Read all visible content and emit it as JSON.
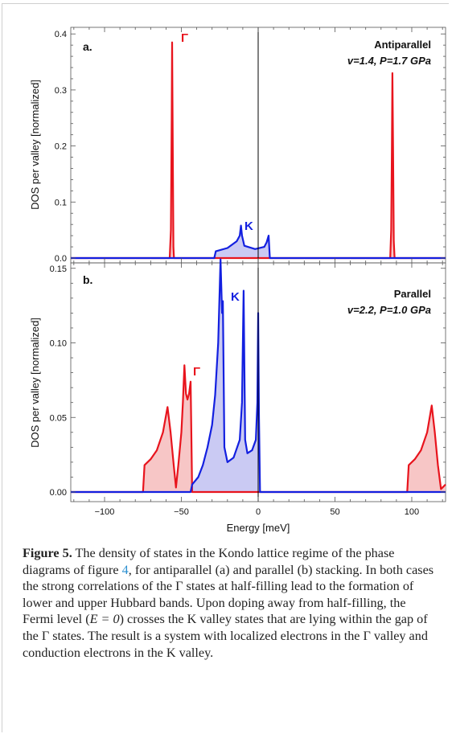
{
  "figure": {
    "xlabel": "Energy [meV]",
    "x_ticklabels": [
      "−100",
      "−50",
      "0",
      "50",
      "100"
    ]
  },
  "caption": {
    "label": "Figure 5.",
    "text_1": " The density of states in the Kondo lattice regime of the phase diagrams of figure ",
    "ref": "4",
    "text_2": ", for antiparallel (a) and parallel (b) stacking. In both cases the strong correlations of the Γ states at half-filling lead to the formation of lower and upper Hubbard bands. Upon doping away from half-filling, the Fermi level (",
    "math": "E = 0",
    "text_3": ") crosses the K valley states that are lying within the gap of the Γ states. The result is a system with localized electrons in the Γ valley and conduction electrons in the K valley."
  },
  "chart_data": [
    {
      "type": "area",
      "panel_label": "a.",
      "title": "Antiparallel",
      "subtitle": "v=1.4, P=1.7 GPa",
      "ylabel": "DOS per valley [normalized]",
      "xlabel": "",
      "xlim": [
        -122,
        122
      ],
      "ylim": [
        0,
        0.41
      ],
      "y_ticklabels": [
        "0.0",
        "0.1",
        "0.2",
        "0.3",
        "0.4"
      ],
      "annotations": [
        "Γ",
        "K"
      ],
      "series": [
        {
          "name": "Γ",
          "color": "#e8141d",
          "fill": "#f7c6c6",
          "points": [
            [
              -122,
              0
            ],
            [
              -57.6,
              0
            ],
            [
              -56.8,
              0.05
            ],
            [
              -56.3,
              0.25
            ],
            [
              -56.0,
              0.385
            ],
            [
              -55.6,
              0.2
            ],
            [
              -55.2,
              0.02
            ],
            [
              -54.8,
              0
            ],
            [
              86.0,
              0
            ],
            [
              86.6,
              0.05
            ],
            [
              87.1,
              0.2
            ],
            [
              87.4,
              0.33
            ],
            [
              87.8,
              0.2
            ],
            [
              88.3,
              0.03
            ],
            [
              88.8,
              0
            ],
            [
              122,
              0
            ]
          ]
        },
        {
          "name": "K",
          "color": "#1320e0",
          "fill": "#cacaf3",
          "points": [
            [
              -122,
              0
            ],
            [
              -28.6,
              0
            ],
            [
              -27.6,
              0.012
            ],
            [
              -20,
              0.018
            ],
            [
              -14,
              0.03
            ],
            [
              -12,
              0.04
            ],
            [
              -11.2,
              0.058
            ],
            [
              -10.5,
              0.04
            ],
            [
              -9,
              0.022
            ],
            [
              -2,
              0.016
            ],
            [
              4,
              0.02
            ],
            [
              5.5,
              0.028
            ],
            [
              6.8,
              0.04
            ],
            [
              7.6,
              0
            ],
            [
              122,
              0
            ]
          ]
        }
      ]
    },
    {
      "type": "area",
      "panel_label": "b.",
      "title": "Parallel",
      "subtitle": "v=2.2, P=1.0 GPa",
      "ylabel": "DOS per valley [normalized]",
      "xlabel": "Energy [meV]",
      "xlim": [
        -122,
        122
      ],
      "ylim": [
        0,
        0.158
      ],
      "x_ticks": [
        -100,
        -50,
        0,
        50,
        100
      ],
      "y_ticklabels": [
        "0.00",
        "0.05",
        "0.10",
        "0.15"
      ],
      "annotations": [
        "Γ",
        "K"
      ],
      "series": [
        {
          "name": "Γ",
          "color": "#e8141d",
          "fill": "#f7c6c6",
          "points": [
            [
              -122,
              0
            ],
            [
              -75,
              0
            ],
            [
              -74,
              0.018
            ],
            [
              -70,
              0.022
            ],
            [
              -66,
              0.028
            ],
            [
              -62,
              0.04
            ],
            [
              -59,
              0.057
            ],
            [
              -57,
              0.04
            ],
            [
              -55,
              0.018
            ],
            [
              -53.5,
              0.003
            ],
            [
              -52,
              0.018
            ],
            [
              -50,
              0.04
            ],
            [
              -49,
              0.06
            ],
            [
              -48,
              0.085
            ],
            [
              -47,
              0.066
            ],
            [
              -46,
              0.062
            ],
            [
              -45,
              0.066
            ],
            [
              -44,
              0.074
            ],
            [
              -43.5,
              0.04
            ],
            [
              -43,
              0
            ],
            [
              97,
              0
            ],
            [
              98,
              0.018
            ],
            [
              102,
              0.022
            ],
            [
              106,
              0.028
            ],
            [
              110,
              0.04
            ],
            [
              113,
              0.058
            ],
            [
              115,
              0.04
            ],
            [
              117,
              0.018
            ],
            [
              119,
              0.002
            ],
            [
              122,
              0.005
            ]
          ]
        },
        {
          "name": "K",
          "color": "#1320e0",
          "fill": "#cacaf3",
          "points": [
            [
              -122,
              0
            ],
            [
              -44,
              0
            ],
            [
              -43,
              0.005
            ],
            [
              -39,
              0.01
            ],
            [
              -36,
              0.018
            ],
            [
              -33,
              0.03
            ],
            [
              -30,
              0.045
            ],
            [
              -28,
              0.065
            ],
            [
              -26,
              0.1
            ],
            [
              -24.5,
              0.156
            ],
            [
              -23.5,
              0.12
            ],
            [
              -23,
              0.128
            ],
            [
              -22,
              0.03
            ],
            [
              -20,
              0.02
            ],
            [
              -16,
              0.023
            ],
            [
              -12,
              0.035
            ],
            [
              -10.5,
              0.06
            ],
            [
              -9.5,
              0.135
            ],
            [
              -8.5,
              0.035
            ],
            [
              -7,
              0.026
            ],
            [
              -4,
              0.028
            ],
            [
              -1.5,
              0.035
            ],
            [
              -0.5,
              0.06
            ],
            [
              0,
              0.12
            ],
            [
              0.5,
              0.05
            ],
            [
              1.2,
              0
            ],
            [
              122,
              0
            ]
          ]
        }
      ]
    }
  ]
}
